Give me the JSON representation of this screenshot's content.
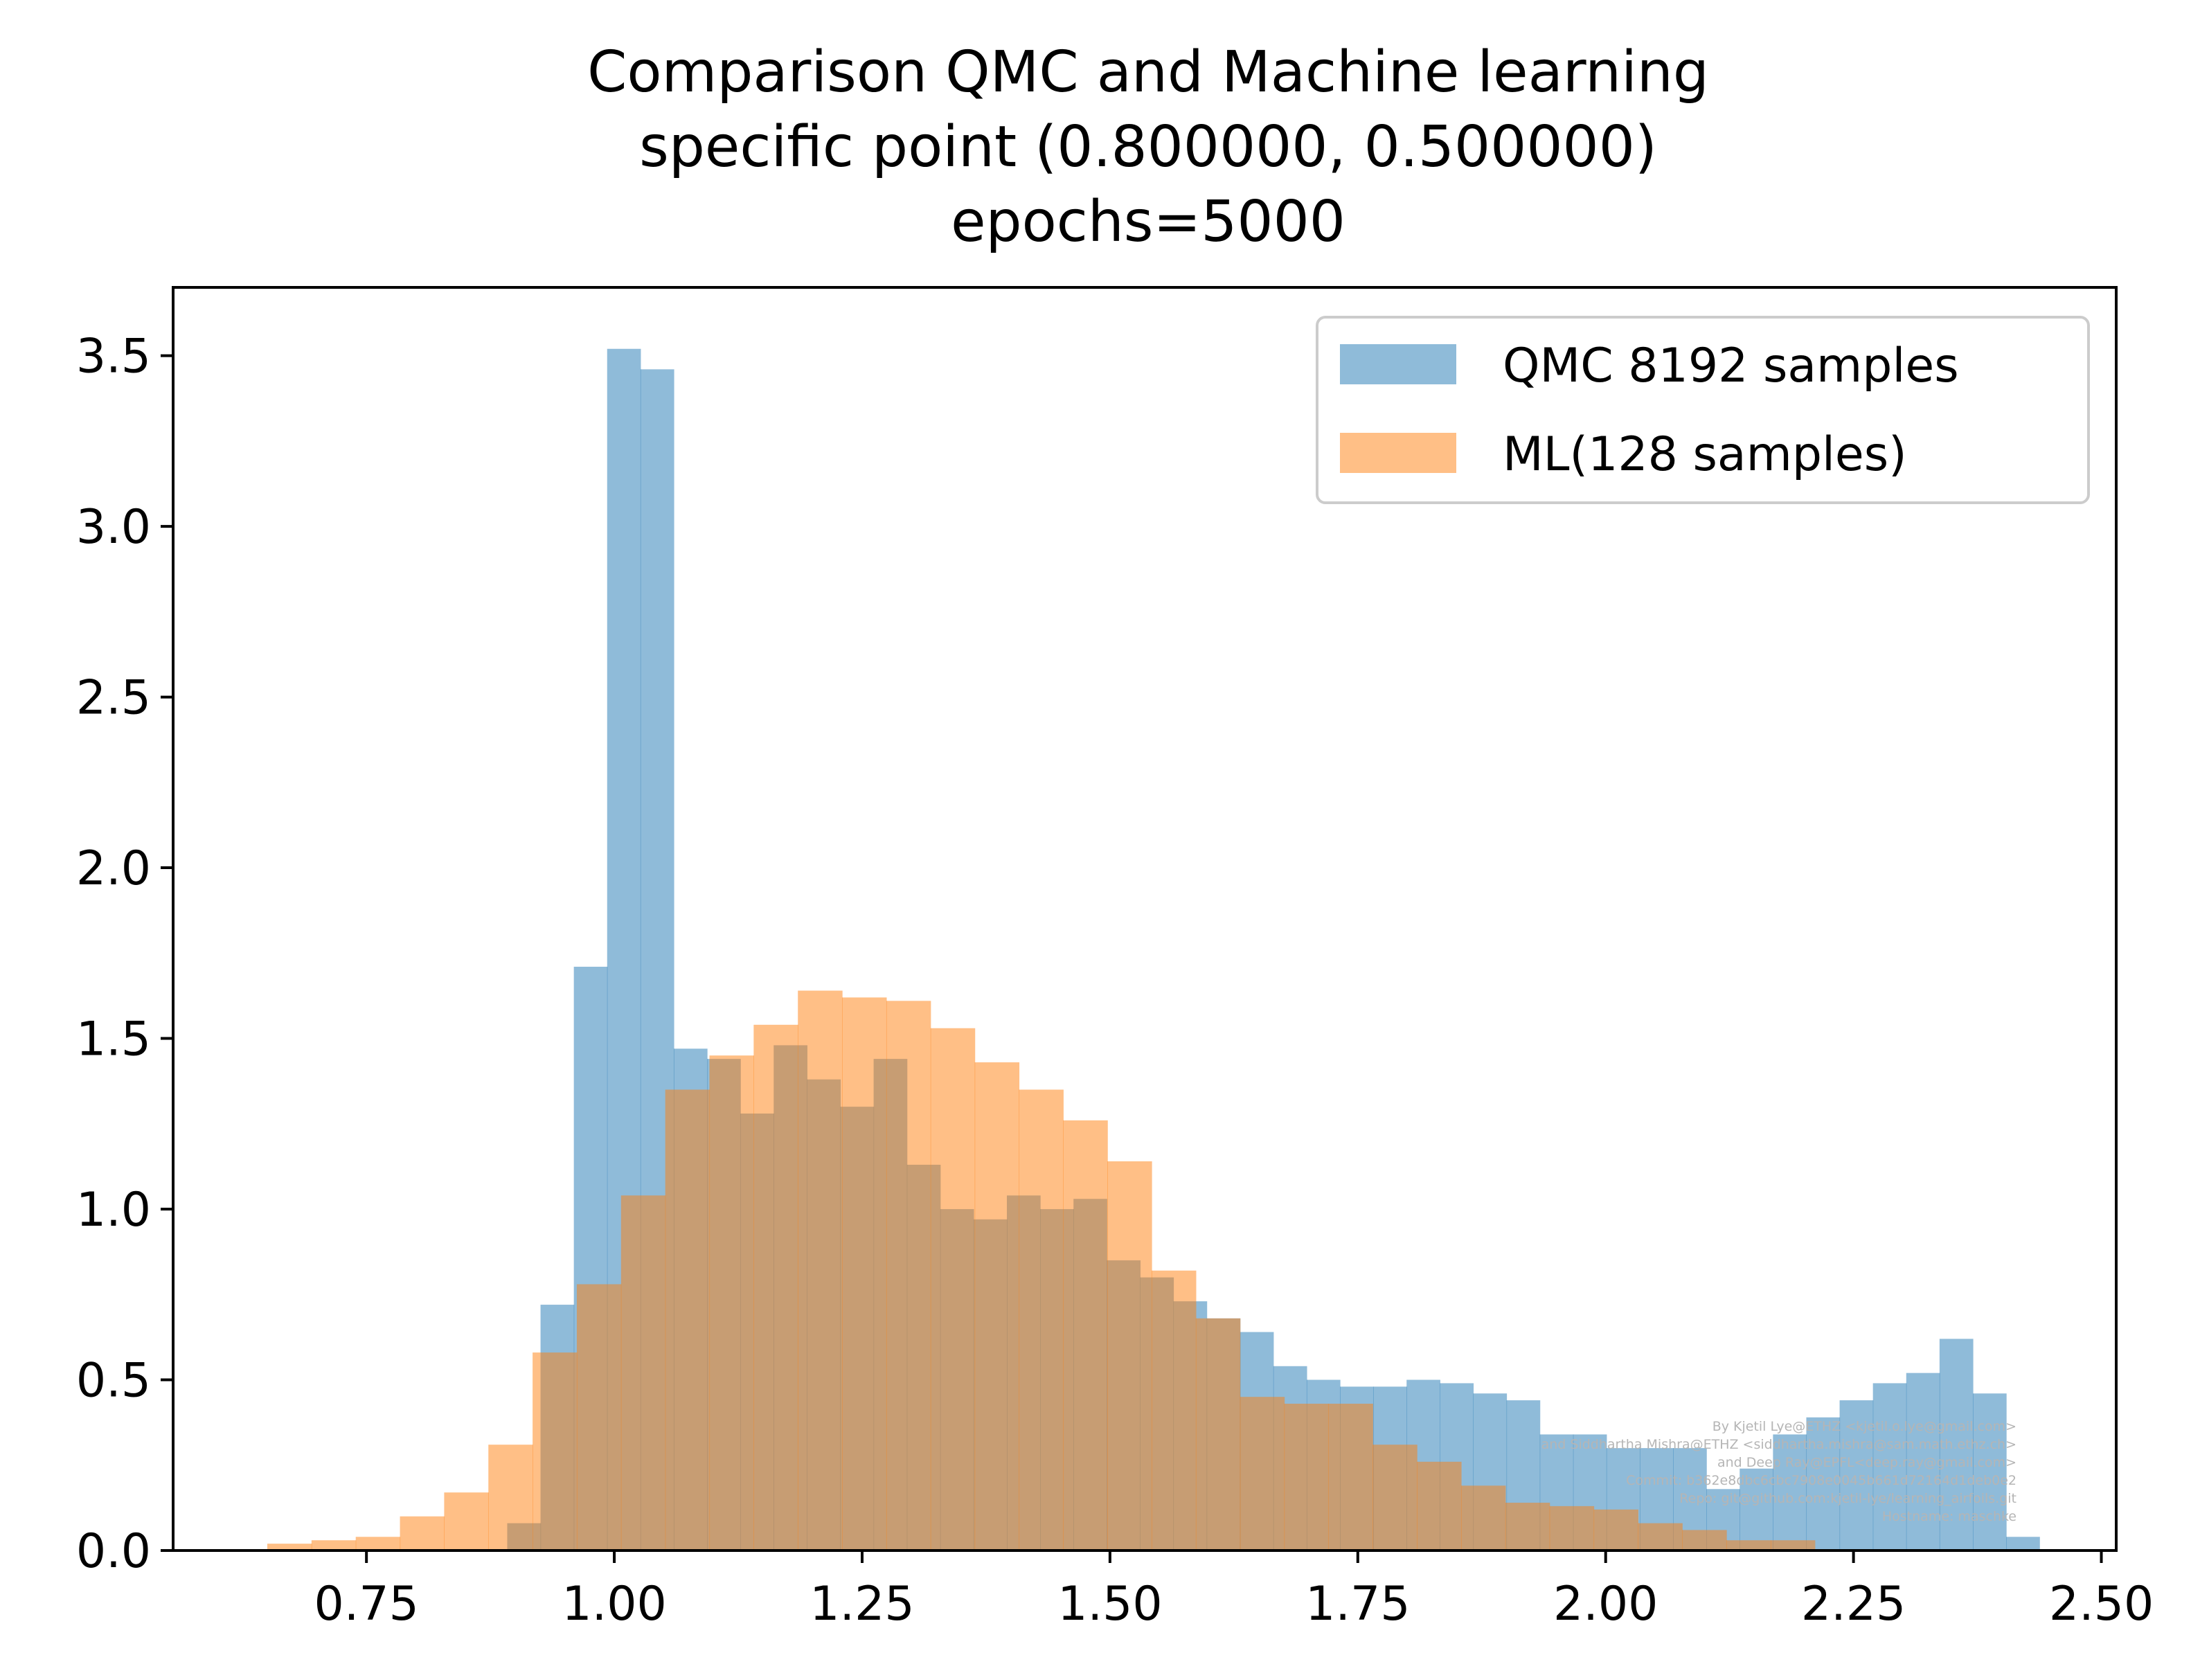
{
  "chart_data": {
    "type": "bar",
    "title_lines": [
      "Comparison QMC and Machine learning",
      "specific point  (0.800000, 0.500000)",
      "epochs=5000"
    ],
    "xlabel": "",
    "ylabel": "",
    "xlim": [
      0.555,
      2.515
    ],
    "ylim": [
      0,
      3.7
    ],
    "x_ticks": [
      "0.75",
      "1.00",
      "1.25",
      "1.50",
      "1.75",
      "2.00",
      "2.25",
      "2.50"
    ],
    "x_tick_values": [
      0.75,
      1.0,
      1.25,
      1.5,
      1.75,
      2.0,
      2.25,
      2.5
    ],
    "y_ticks": [
      "0.0",
      "0.5",
      "1.0",
      "1.5",
      "2.0",
      "2.5",
      "3.0",
      "3.5"
    ],
    "y_tick_values": [
      0,
      0.5,
      1.0,
      1.5,
      2.0,
      2.5,
      3.0,
      3.5
    ],
    "legend_position": "upper right",
    "grid": false,
    "series": [
      {
        "name": "QMC 8192 samples",
        "color": "#1f77b4",
        "alpha": 0.5,
        "bin_start": 0.892,
        "bin_width": 0.0336,
        "values": [
          0.08,
          0.72,
          1.71,
          3.52,
          3.46,
          1.47,
          1.44,
          1.28,
          1.48,
          1.38,
          1.3,
          1.44,
          1.13,
          1.0,
          0.97,
          1.04,
          1.0,
          1.03,
          0.85,
          0.8,
          0.73,
          0.68,
          0.64,
          0.54,
          0.5,
          0.48,
          0.48,
          0.5,
          0.49,
          0.46,
          0.44,
          0.34,
          0.34,
          0.3,
          0.3,
          0.3,
          0.18,
          0.24,
          0.34,
          0.39,
          0.44,
          0.49,
          0.52,
          0.62,
          0.46,
          0.04
        ]
      },
      {
        "name": "ML(128 samples)",
        "color": "#ff7f0e",
        "alpha": 0.5,
        "bin_start": 0.65,
        "bin_width": 0.0446,
        "values": [
          0.02,
          0.03,
          0.04,
          0.1,
          0.17,
          0.31,
          0.58,
          0.78,
          1.04,
          1.35,
          1.45,
          1.54,
          1.64,
          1.62,
          1.61,
          1.53,
          1.43,
          1.35,
          1.26,
          1.14,
          0.82,
          0.68,
          0.45,
          0.43,
          0.43,
          0.31,
          0.26,
          0.19,
          0.14,
          0.13,
          0.12,
          0.08,
          0.06,
          0.03,
          0.03
        ]
      }
    ],
    "watermark_lines": [
      "By Kjetil Lye@ETHZ <kjetil.o.lye@gmail.com>",
      "and Siddhartha Mishra@ETHZ <siddhartha.mishra@sam.math.ethz.ch>",
      "and Deep Ray@EPFL<deep.ray@gmail.com>",
      "Commit: b362e8dbc6cbc7908e0045b661d72164d1deb0e2",
      "Repo: git@github.com:kjetil-lye/learning_airfoils.git",
      "Hostname: maschke"
    ]
  }
}
